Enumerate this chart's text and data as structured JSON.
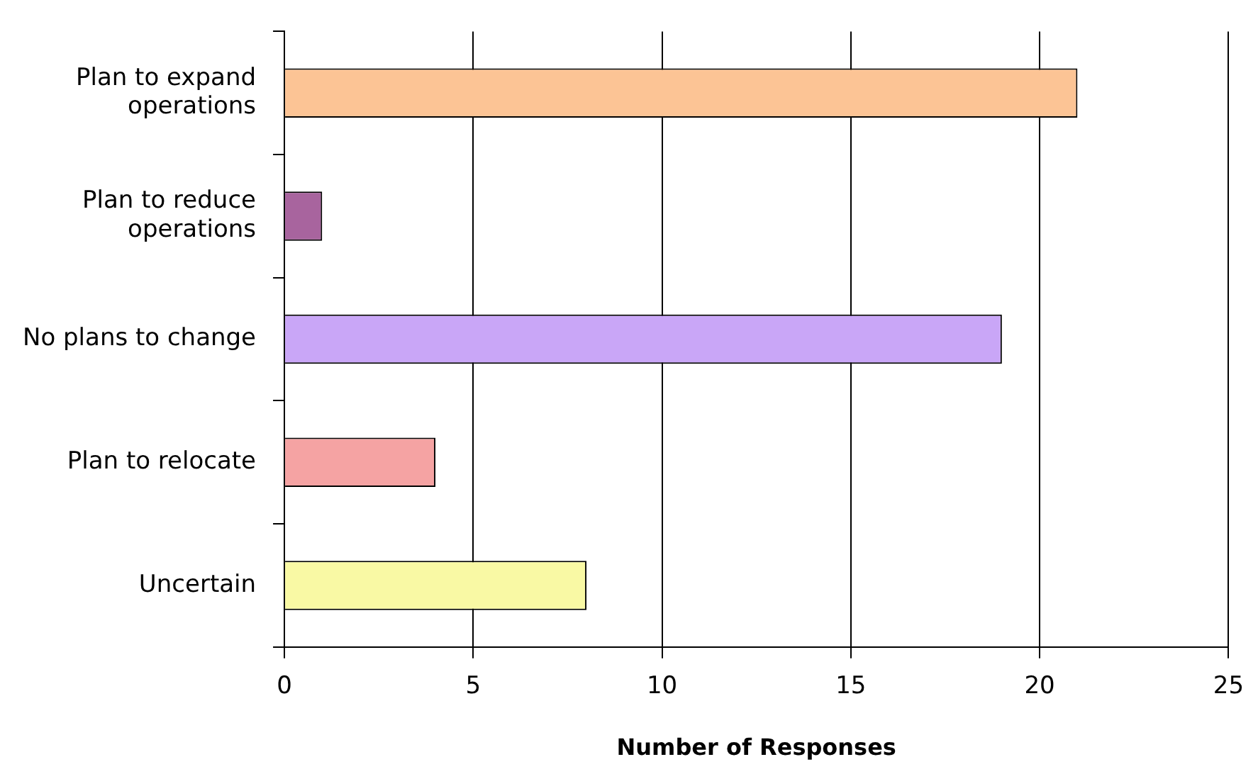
{
  "chart_data": {
    "type": "bar",
    "orientation": "horizontal",
    "xlabel": "Number of Responses",
    "categories": [
      "Plan to expand operations",
      "Plan to reduce operations",
      "No plans to change",
      "Plan to relocate",
      "Uncertain"
    ],
    "values": [
      21,
      1,
      19,
      4,
      8
    ],
    "colors": [
      "#fcc495",
      "#a8649e",
      "#c9a6f7",
      "#f5a3a3",
      "#f9f9a4"
    ],
    "xlim": [
      0,
      25
    ],
    "xticks": [
      0,
      5,
      10,
      15,
      20,
      25
    ],
    "grid": "x",
    "legend": false
  }
}
